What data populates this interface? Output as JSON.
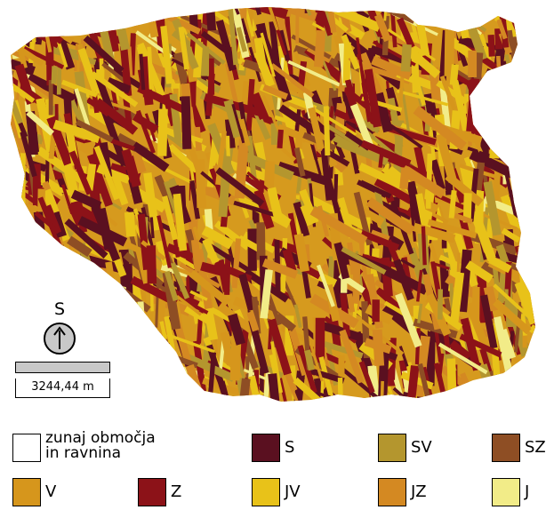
{
  "map": {
    "palette": [
      "#5a1020",
      "#b4962e",
      "#8e4e24",
      "#d6961c",
      "#8c1218",
      "#e8c219",
      "#d48922",
      "#f2ec88"
    ]
  },
  "north_arrow": {
    "letter": "S",
    "icon": "north-arrow-icon"
  },
  "scale": {
    "label": "3244,44 m"
  },
  "legend": {
    "items": [
      {
        "label": "zunaj območja\nin ravnina",
        "color": "#ffffff"
      },
      {
        "label": "S",
        "color": "#5a1020"
      },
      {
        "label": "SV",
        "color": "#b4962e"
      },
      {
        "label": "SZ",
        "color": "#8e4e24"
      },
      {
        "label": "V",
        "color": "#d6961c"
      },
      {
        "label": "Z",
        "color": "#8c1218"
      },
      {
        "label": "JV",
        "color": "#e8c219"
      },
      {
        "label": "JZ",
        "color": "#d48922"
      },
      {
        "label": "J",
        "color": "#f2ec88"
      }
    ]
  }
}
